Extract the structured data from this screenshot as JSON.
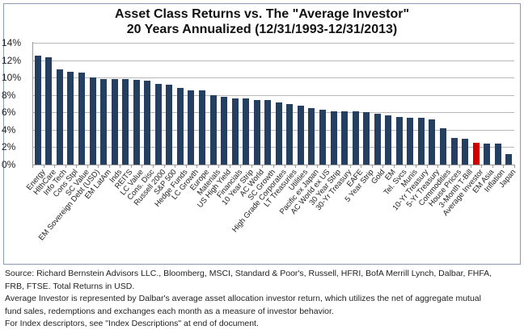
{
  "chart_data": {
    "type": "bar",
    "title": "Asset Class Returns vs. The \"Average Investor\"",
    "subtitle": "20 Years Annualized (12/31/1993-12/31/2013)",
    "xlabel": "",
    "ylabel": "",
    "ylim": [
      0,
      14
    ],
    "yticks": [
      "0%",
      "2%",
      "4%",
      "6%",
      "8%",
      "10%",
      "12%",
      "14%"
    ],
    "grid": true,
    "legend": null,
    "highlight_category": "Average Investor",
    "colors": {
      "default": "#243f60",
      "highlight": "#cc0000"
    },
    "categories": [
      "Energy",
      "HlthCare",
      "Info Tech",
      "Cons Stpl",
      "SC Value",
      "EM Sovereign Debt (USD)",
      "EM LatAm",
      "Inds",
      "REITS",
      "LC Value",
      "Cons. Disc",
      "Russell 2000",
      "S&P 500",
      "Hedge Funds",
      "LC Growth",
      "Europe",
      "Materials",
      "US High Yield",
      "Financials",
      "10 Year Strip",
      "AC World",
      "SC Growth",
      "High Grade Corporates",
      "LT Treasuries",
      "Utilities",
      "Pacific ex Japan",
      "AC World ex US",
      "30 Year Strip",
      "30-Yr Treasury",
      "EAFE",
      "5 Year Strip",
      "Gold",
      "EM",
      "Tel. Svcs",
      "Munis",
      "10-Yr Treasury",
      "5-Yr Treasury",
      "Commodities",
      "House Prices",
      "3-Month T-Bill",
      "Average Investor",
      "EM Asia",
      "Inflation",
      "Japan"
    ],
    "values": [
      12.5,
      12.3,
      10.9,
      10.7,
      10.6,
      10.0,
      9.8,
      9.8,
      9.8,
      9.7,
      9.6,
      9.3,
      9.2,
      8.8,
      8.5,
      8.5,
      8.0,
      7.8,
      7.6,
      7.6,
      7.4,
      7.4,
      7.1,
      7.0,
      6.8,
      6.5,
      6.3,
      6.1,
      6.1,
      6.1,
      6.0,
      5.8,
      5.7,
      5.5,
      5.4,
      5.4,
      5.2,
      4.2,
      3.1,
      3.0,
      2.5,
      2.4,
      2.4,
      1.2
    ]
  },
  "footer": {
    "lines": [
      "Source: Richard Bernstein Advisors LLC., Bloomberg, MSCI, Standard & Poor's, Russell, HFRI, BofA Merrill Lynch, Dalbar, FHFA,",
      "FRB, FTSE.  Total Returns in USD.",
      "Average Investor is represented by Dalbar's average asset allocation investor return, which utilizes the net of aggregate mutual",
      "fund sales, redemptions and exchanges each month as a measure of investor behavior.",
      "For Index descriptors, see \"Index Descriptions\" at end of document."
    ]
  }
}
